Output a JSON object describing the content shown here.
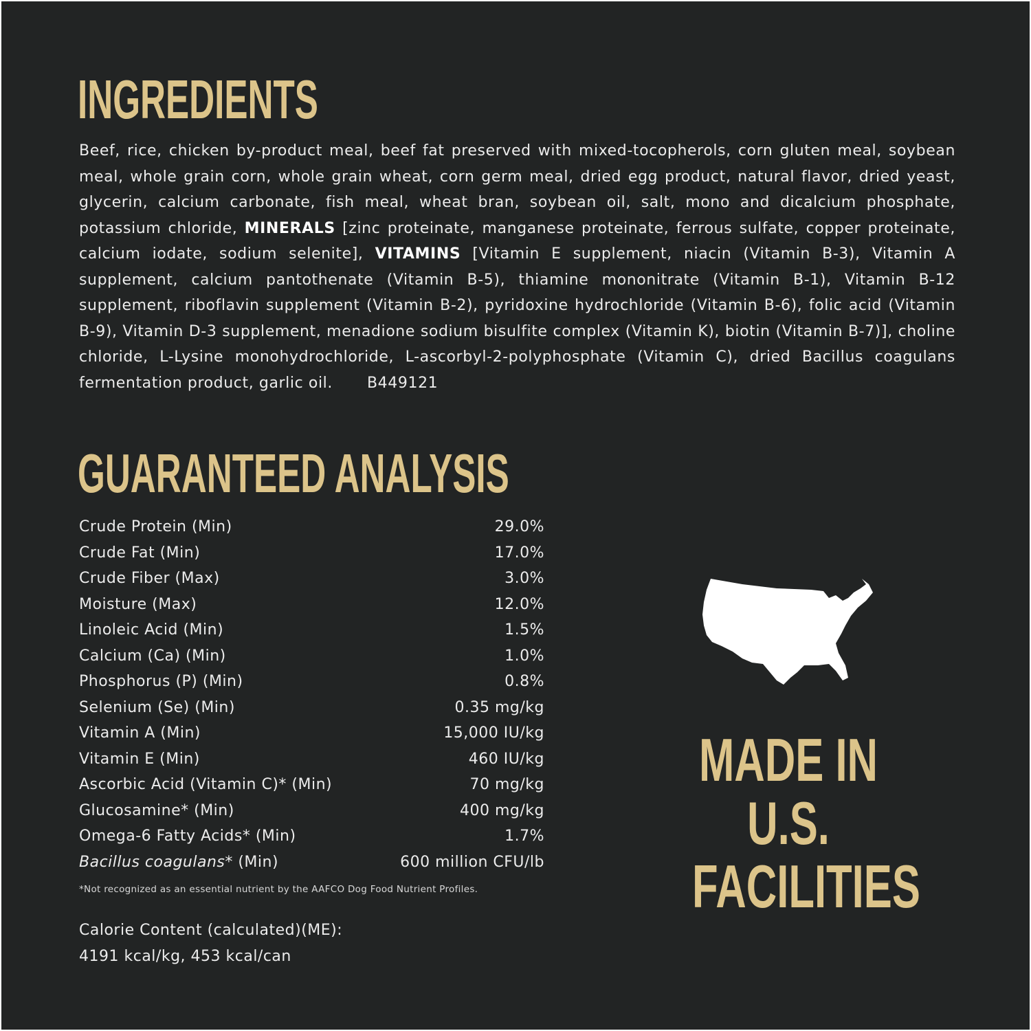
{
  "ingredients": {
    "title": "INGREDIENTS",
    "text_1": "Beef, rice, chicken by-product meal, beef fat preserved with mixed-tocopherols, corn gluten meal, soybean meal, whole grain corn, whole grain wheat, corn germ meal, dried egg product, natural flavor, dried yeast, glycerin, calcium carbonate, fish meal, wheat bran, soybean oil, salt, mono and dicalcium phosphate, potassium chloride, ",
    "minerals_label": "MINERALS",
    "text_2": " [zinc proteinate, manganese proteinate, ferrous sulfate, copper proteinate, calcium iodate, sodium selenite], ",
    "vitamins_label": "VITAMINS",
    "text_3": " [Vitamin E supplement, niacin (Vitamin B-3), Vitamin A supplement, calcium pantothenate (Vitamin B-5), thiamine mononitrate (Vitamin B-1), Vitamin B-12 supplement, riboflavin supplement (Vitamin B-2), pyridoxine hydrochloride (Vitamin B-6), folic acid (Vitamin B-9), Vitamin D-3 supplement, menadione sodium bisulfite complex (Vitamin K), biotin (Vitamin B-7)], choline chloride, L-Lysine monohydrochloride, L-ascorbyl-2-polyphosphate (Vitamin C), dried Bacillus coagulans fermentation product, garlic oil.",
    "code": "B449121"
  },
  "analysis": {
    "title": "GUARANTEED ANALYSIS",
    "rows": [
      {
        "label": "Crude Protein (Min)",
        "value": "29.0%"
      },
      {
        "label": "Crude Fat (Min)",
        "value": "17.0%"
      },
      {
        "label": "Crude Fiber (Max)",
        "value": "3.0%"
      },
      {
        "label": "Moisture (Max)",
        "value": "12.0%"
      },
      {
        "label": "Linoleic Acid (Min)",
        "value": "1.5%"
      },
      {
        "label": "Calcium (Ca) (Min)",
        "value": "1.0%"
      },
      {
        "label": "Phosphorus (P) (Min)",
        "value": "0.8%"
      },
      {
        "label": "Selenium (Se) (Min)",
        "value": "0.35 mg/kg"
      },
      {
        "label": "Vitamin A (Min)",
        "value": "15,000 IU/kg"
      },
      {
        "label": "Vitamin E (Min)",
        "value": "460 IU/kg"
      },
      {
        "label": "Ascorbic Acid (Vitamin C)* (Min)",
        "value": "70 mg/kg"
      },
      {
        "label": "Glucosamine* (Min)",
        "value": "400 mg/kg"
      },
      {
        "label": "Omega-6 Fatty Acids* (Min)",
        "value": "1.7%"
      }
    ],
    "last_row": {
      "label_italic": "Bacillus coagulans",
      "label_rest": "* (Min)",
      "value": "600 million CFU/lb"
    },
    "footnote": "*Not recognized as an essential nutrient by the AAFCO Dog Food Nutrient Profiles.",
    "calorie_label": "Calorie Content (calculated)(ME):",
    "calorie_value": "4191 kcal/kg, 453 kcal/can"
  },
  "origin": {
    "icon": "usa-map-icon",
    "lines": [
      "MADE IN",
      "U.S.",
      "FACILITIES"
    ]
  },
  "colors": {
    "background": "#222424",
    "accent": "#dcc48a",
    "text": "#ececec"
  }
}
